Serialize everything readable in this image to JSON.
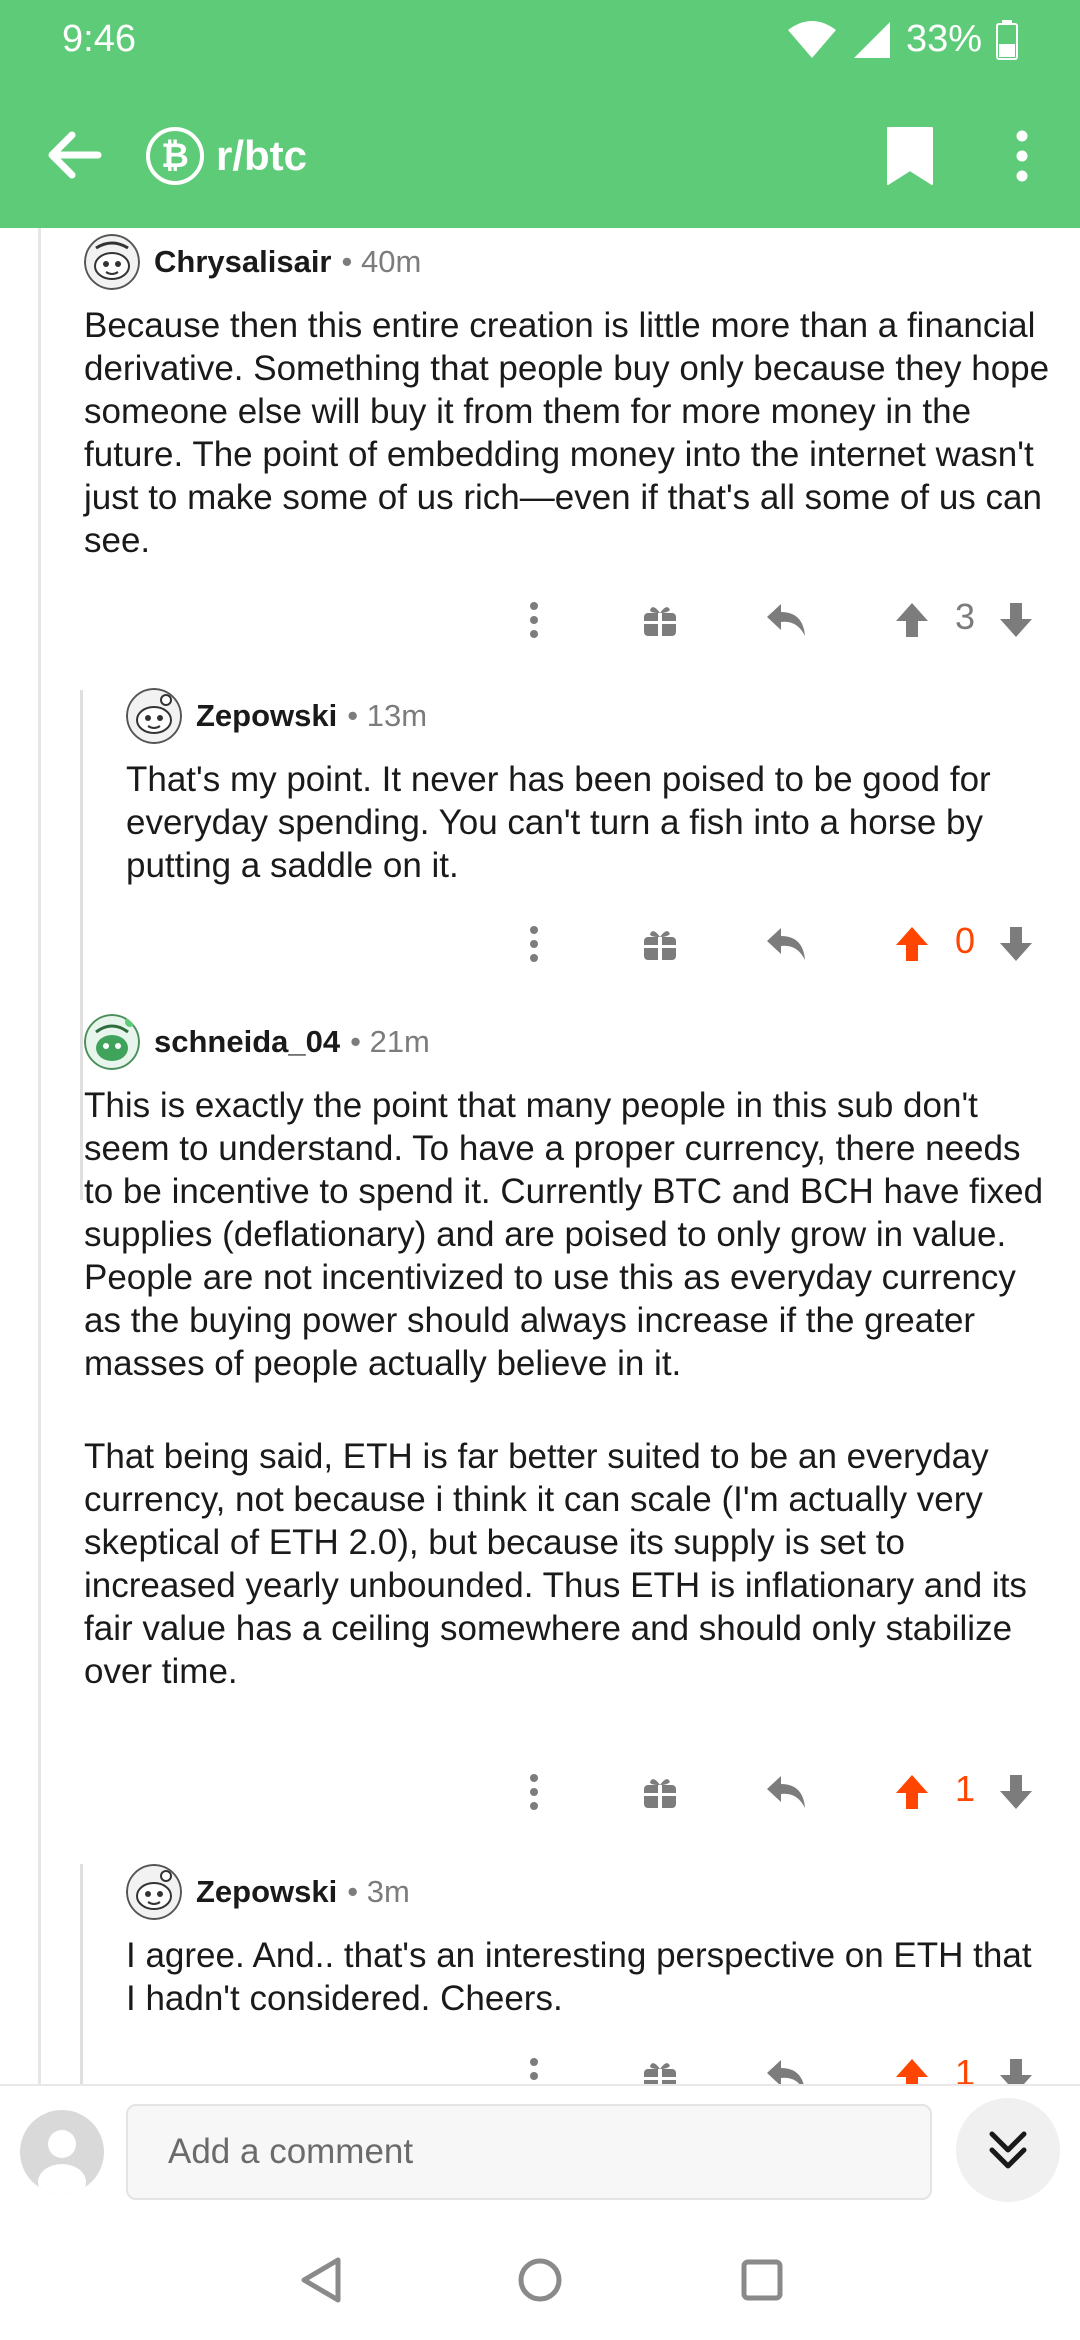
{
  "status_bar": {
    "time": "9:46",
    "battery": "33%"
  },
  "app_bar": {
    "subreddit": "r/btc",
    "subreddit_icon_glyph": "₿"
  },
  "colors": {
    "brand_green": "#5ecb78",
    "upvote_orange": "#ff4500",
    "icon_grey": "#7c7c7c"
  },
  "comments": [
    {
      "username": "Chrysalisair",
      "age": "40m",
      "paragraphs": [
        "Because then this entire creation is little more than a financial derivative. Something that people buy only because they hope someone else will buy it from them for more money in the future. The point of embedding money into the internet wasn't just to make some of us rich—even if that's all some of us can see."
      ],
      "score": "3",
      "upvoted": false
    },
    {
      "username": "Zepowski",
      "age": "13m",
      "paragraphs": [
        "That's my point. It never has been poised to be good for everyday spending. You can't turn a fish into a horse by putting a saddle on it."
      ],
      "score": "0",
      "upvoted": true
    },
    {
      "username": "schneida_04",
      "age": "21m",
      "paragraphs": [
        "This is exactly the point that many people in this sub don't seem to understand.  To have a proper currency, there needs to be incentive to spend it. Currently BTC and BCH have fixed supplies (deflationary) and are poised to only grow in value.  People are not incentivized to use this as everyday currency as the buying power should always increase if the greater masses of people actually believe in it.",
        "That being said, ETH is far better suited to be an everyday currency, not because i think it can scale (I'm actually very skeptical of ETH 2.0), but because its supply is set to increased yearly unbounded. Thus ETH is inflationary and its fair value has a ceiling somewhere and should only stabilize over time."
      ],
      "score": "1",
      "upvoted": true
    },
    {
      "username": "Zepowski",
      "age": "3m",
      "paragraphs": [
        "I agree. And.. that's an interesting perspective on ETH that I hadn't considered. Cheers."
      ],
      "score": "1",
      "upvoted": true
    }
  ],
  "composer": {
    "placeholder": "Add a comment"
  }
}
